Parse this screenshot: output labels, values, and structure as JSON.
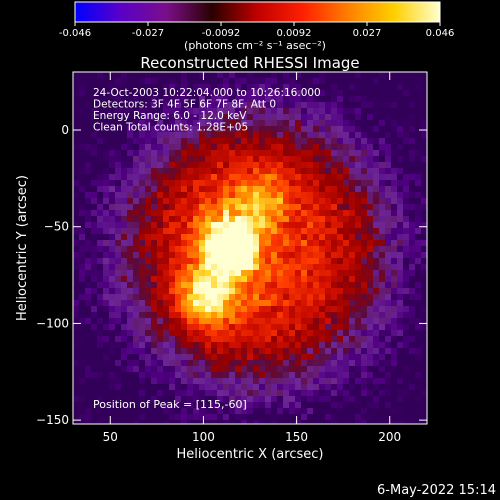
{
  "chart_data": {
    "type": "heatmap",
    "title": "Reconstructed RHESSI Image",
    "xlabel": "Heliocentric X (arcsec)",
    "ylabel": "Heliocentric Y (arcsec)",
    "xlim": [
      30,
      220
    ],
    "ylim": [
      -152,
      30
    ],
    "x_ticks": [
      50,
      100,
      150,
      200
    ],
    "y_ticks": [
      0,
      -50,
      -100,
      -150
    ],
    "colorbar": {
      "range": [
        -0.046,
        0.046
      ],
      "ticks": [
        "-0.046",
        "-0.027",
        "-0.0092",
        "0.0092",
        "0.027",
        "0.046"
      ],
      "units_label": "(photons cm⁻² s⁻¹ asec⁻²)",
      "colors": [
        "#0000ff",
        "#5a00c8",
        "#7a0f8a",
        "#2a0000",
        "#c00000",
        "#ff2000",
        "#ff8000",
        "#ffd000",
        "#ffffd0"
      ]
    },
    "annotations": [
      "24-Oct-2003 10:22:04.000 to 10:26:16.000",
      "Detectors: 3F 4F 5F 6F 7F 8F, Att 0",
      "Energy Range: 6.0 - 12.0 keV",
      "Clean     Total counts: 1.28E+05"
    ],
    "peak_label": "Position of Peak = [115,-60]",
    "peak_position": [
      115,
      -60
    ],
    "sources": [
      {
        "x": 115,
        "y": -60,
        "peak": 1.0
      },
      {
        "x": 100,
        "y": -88,
        "peak": 0.93
      },
      {
        "x": 132,
        "y": -35,
        "peak": 0.55
      }
    ],
    "footer_date": "6-May-2022 15:14"
  }
}
